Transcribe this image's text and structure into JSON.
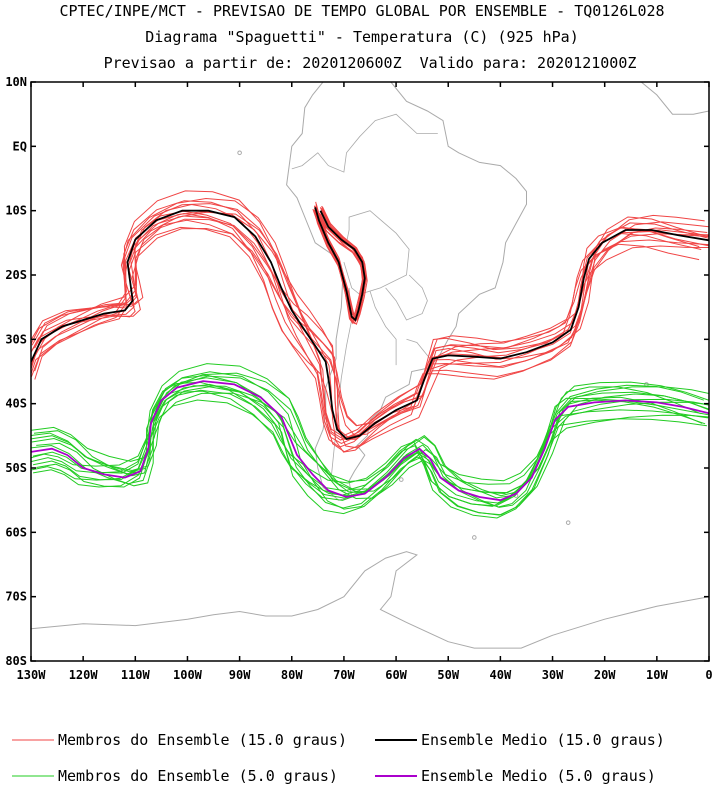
{
  "chart_data": {
    "type": "line",
    "title": "CPTEC/INPE/MCT - PREVISAO DE TEMPO GLOBAL POR ENSEMBLE - TQ0126L028",
    "subtitle": "Diagrama \"Spaguetti\" - Temperatura (C) (925 hPa)",
    "subtitle2": "Previsao a partir de: 2020120600Z  Valido para: 2020121000Z",
    "xlabel": "",
    "ylabel": "",
    "xlim": [
      -130,
      0
    ],
    "ylim": [
      -80,
      10
    ],
    "x_ticks": [
      {
        "value": -130,
        "label": "130W"
      },
      {
        "value": -120,
        "label": "120W"
      },
      {
        "value": -110,
        "label": "110W"
      },
      {
        "value": -100,
        "label": "100W"
      },
      {
        "value": -90,
        "label": "90W"
      },
      {
        "value": -80,
        "label": "80W"
      },
      {
        "value": -70,
        "label": "70W"
      },
      {
        "value": -60,
        "label": "60W"
      },
      {
        "value": -50,
        "label": "50W"
      },
      {
        "value": -40,
        "label": "40W"
      },
      {
        "value": -30,
        "label": "30W"
      },
      {
        "value": -20,
        "label": "20W"
      },
      {
        "value": -10,
        "label": "10W"
      },
      {
        "value": 0,
        "label": "0"
      }
    ],
    "y_ticks": [
      {
        "value": 10,
        "label": "10N"
      },
      {
        "value": 0,
        "label": "EQ"
      },
      {
        "value": -10,
        "label": "10S"
      },
      {
        "value": -20,
        "label": "20S"
      },
      {
        "value": -30,
        "label": "30S"
      },
      {
        "value": -40,
        "label": "40S"
      },
      {
        "value": -50,
        "label": "50S"
      },
      {
        "value": -60,
        "label": "60S"
      },
      {
        "value": -70,
        "label": "70S"
      },
      {
        "value": -80,
        "label": "80S"
      }
    ],
    "series": [
      {
        "name": "Membros do Ensemble (15.0 graus)",
        "color": "#f04545",
        "kind": "members",
        "base": "iso15",
        "count": 14
      },
      {
        "name": "Ensemble Medio (15.0 graus)",
        "color": "#000000",
        "kind": "mean",
        "segments": [
          [
            [
              -130,
              -33.5
            ],
            [
              -128,
              -30
            ],
            [
              -124,
              -28
            ],
            [
              -120,
              -27
            ],
            [
              -116,
              -26
            ],
            [
              -112,
              -25.5
            ],
            [
              -110.5,
              -24
            ],
            [
              -111,
              -21
            ],
            [
              -111.5,
              -18
            ],
            [
              -110,
              -14.5
            ],
            [
              -106,
              -11.5
            ],
            [
              -101,
              -10
            ],
            [
              -96,
              -10
            ],
            [
              -91,
              -11
            ],
            [
              -87,
              -14
            ],
            [
              -84,
              -18
            ],
            [
              -82,
              -22
            ],
            [
              -80,
              -25.5
            ],
            [
              -78,
              -28
            ],
            [
              -75.5,
              -31
            ],
            [
              -73.5,
              -33.5
            ],
            [
              -72.8,
              -37
            ],
            [
              -72.2,
              -41
            ],
            [
              -71.3,
              -44
            ],
            [
              -69.5,
              -45.5
            ],
            [
              -67,
              -45
            ],
            [
              -64,
              -43
            ],
            [
              -60,
              -41
            ],
            [
              -56,
              -39.5
            ],
            [
              -54.5,
              -36
            ],
            [
              -53,
              -33
            ],
            [
              -50,
              -32.5
            ],
            [
              -45,
              -32.7
            ],
            [
              -40,
              -33
            ],
            [
              -35,
              -32
            ],
            [
              -30,
              -30.5
            ],
            [
              -26.5,
              -28.5
            ],
            [
              -25,
              -25
            ],
            [
              -24,
              -20.5
            ],
            [
              -23,
              -17.5
            ],
            [
              -20.5,
              -15
            ],
            [
              -16,
              -13
            ],
            [
              -11,
              -13
            ],
            [
              -6,
              -13.8
            ],
            [
              0,
              -14.6
            ]
          ],
          [
            [
              -74.5,
              -10
            ],
            [
              -73,
              -12.5
            ],
            [
              -70.5,
              -14.5
            ],
            [
              -68,
              -16
            ],
            [
              -66.5,
              -18
            ],
            [
              -66,
              -20.5
            ],
            [
              -66.5,
              -23
            ],
            [
              -67.2,
              -25.5
            ],
            [
              -67.8,
              -27
            ],
            [
              -68.5,
              -26.5
            ],
            [
              -69.5,
              -22.5
            ],
            [
              -71,
              -18
            ],
            [
              -73,
              -15
            ],
            [
              -74.8,
              -11.5
            ],
            [
              -75.5,
              -9.5
            ]
          ]
        ]
      },
      {
        "name": "Membros do Ensemble (5.0 graus)",
        "color": "#22cc22",
        "kind": "members",
        "base": "iso5",
        "count": 14
      },
      {
        "name": "Ensemble Medio (5.0 graus)",
        "color": "#aa00cc",
        "kind": "mean",
        "segments": [
          [
            [
              -130,
              -47.5
            ],
            [
              -126,
              -47
            ],
            [
              -123,
              -48
            ],
            [
              -120,
              -50
            ],
            [
              -116,
              -51
            ],
            [
              -112,
              -51.5
            ],
            [
              -109,
              -50.5
            ],
            [
              -107.5,
              -47
            ],
            [
              -107,
              -43
            ],
            [
              -105,
              -39.5
            ],
            [
              -102,
              -37.5
            ],
            [
              -97,
              -36.5
            ],
            [
              -91,
              -37
            ],
            [
              -86,
              -39
            ],
            [
              -82,
              -42
            ],
            [
              -80.5,
              -45
            ],
            [
              -79,
              -48
            ],
            [
              -76,
              -51
            ],
            [
              -73,
              -53.5
            ],
            [
              -69.5,
              -54.5
            ],
            [
              -66,
              -54
            ],
            [
              -62,
              -51.5
            ],
            [
              -58.5,
              -48.5
            ],
            [
              -55.5,
              -47
            ],
            [
              -53.5,
              -48.5
            ],
            [
              -51.5,
              -51.5
            ],
            [
              -48,
              -53.5
            ],
            [
              -44,
              -54.5
            ],
            [
              -40,
              -55
            ],
            [
              -37,
              -54
            ],
            [
              -34,
              -51.5
            ],
            [
              -31.5,
              -47
            ],
            [
              -29.5,
              -42.5
            ],
            [
              -27,
              -40.5
            ],
            [
              -22,
              -39.8
            ],
            [
              -16,
              -39.5
            ],
            [
              -10,
              -39.8
            ],
            [
              -5,
              -40.5
            ],
            [
              0,
              -41.5
            ]
          ]
        ]
      }
    ],
    "legend": [
      {
        "label": "Membros do Ensemble (15.0 graus)",
        "color": "#f04545"
      },
      {
        "label": "Ensemble Medio (15.0 graus)",
        "color": "#000000"
      },
      {
        "label": "Membros do Ensemble (5.0 graus)",
        "color": "#22cc22"
      },
      {
        "label": "Ensemble Medio (5.0 graus)",
        "color": "#aa00cc"
      }
    ]
  }
}
